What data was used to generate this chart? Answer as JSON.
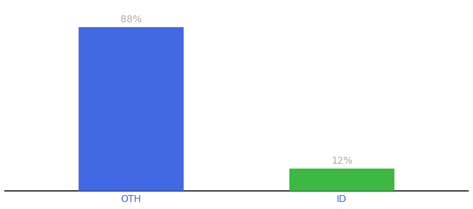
{
  "categories": [
    "OTH",
    "ID"
  ],
  "values": [
    88,
    12
  ],
  "bar_colors": [
    "#4169e1",
    "#3cb843"
  ],
  "label_color": "#b8a898",
  "label_format": [
    "88%",
    "12%"
  ],
  "background_color": "#ffffff",
  "ylim": [
    0,
    100
  ],
  "bar_width": 0.5,
  "label_fontsize": 10,
  "tick_fontsize": 10,
  "tick_color": "#4169e1"
}
